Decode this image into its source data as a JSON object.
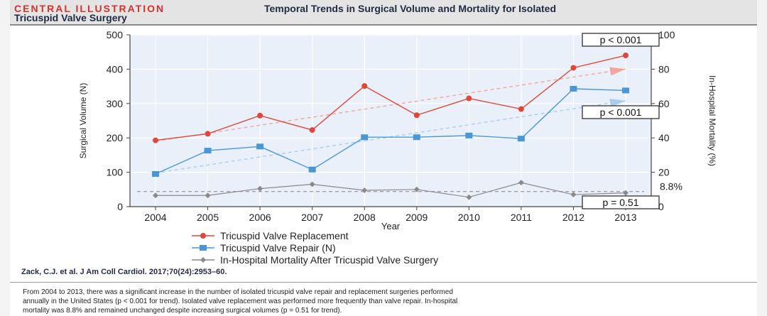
{
  "header": {
    "tag": "CENTRAL ILLUSTRATION",
    "title_line1": "Temporal Trends in Surgical Volume and Mortality for Isolated",
    "title_line2": "Tricuspid Valve Surgery"
  },
  "chart_data": {
    "type": "line",
    "x": [
      2004,
      2005,
      2006,
      2007,
      2008,
      2009,
      2010,
      2011,
      2012,
      2013
    ],
    "xlabel": "Year",
    "ylabel_left": "Surgical Volume (N)",
    "ylabel_right": "In-Hospital Mortality (%)",
    "ylim_left": [
      0,
      500
    ],
    "yticks_left": [
      0,
      100,
      200,
      300,
      400,
      500
    ],
    "ylim_right": [
      0,
      100
    ],
    "yticks_right": [
      0,
      20,
      40,
      60,
      80,
      100
    ],
    "series": [
      {
        "name": "Tricuspid Valve Replacement",
        "axis": "left",
        "color": "#e0473b",
        "marker": "circle",
        "values": [
          193,
          212,
          265,
          223,
          351,
          266,
          315,
          284,
          404,
          440
        ],
        "trend_pvalue": "p < 0.001"
      },
      {
        "name": "Tricuspid Valve Repair (N)",
        "axis": "left",
        "color": "#4a97d8",
        "marker": "square",
        "values": [
          95,
          163,
          175,
          108,
          202,
          202,
          207,
          198,
          343,
          338
        ],
        "trend_pvalue": "p < 0.001"
      },
      {
        "name": "In-Hospital Mortality After Tricuspid Valve Surgery",
        "axis": "right",
        "color": "#8a8a8a",
        "marker": "diamond",
        "values": [
          6.5,
          6.5,
          10.5,
          13,
          9.5,
          10,
          5.5,
          14,
          7,
          8
        ],
        "trend_pvalue": "p = 0.51"
      }
    ],
    "mortality_reference_label": "8.8%",
    "mortality_reference_value": 8.8,
    "grid": true,
    "legend_placement": "bottom"
  },
  "citation": "Zack, C.J. et al. J Am Coll Cardiol. 2017;70(24):2953–60.",
  "caption_lines": [
    "From 2004 to 2013, there was a significant increase in the number of isolated tricuspid valve repair and replacement surgeries performed",
    "annually in the United States (p < 0.001 for trend). Isolated valve replacement was performed more frequently than valve repair. In-hospital",
    "mortality was 8.8% and remained unchanged despite increasing surgical volumes (p = 0.51 for trend)."
  ]
}
